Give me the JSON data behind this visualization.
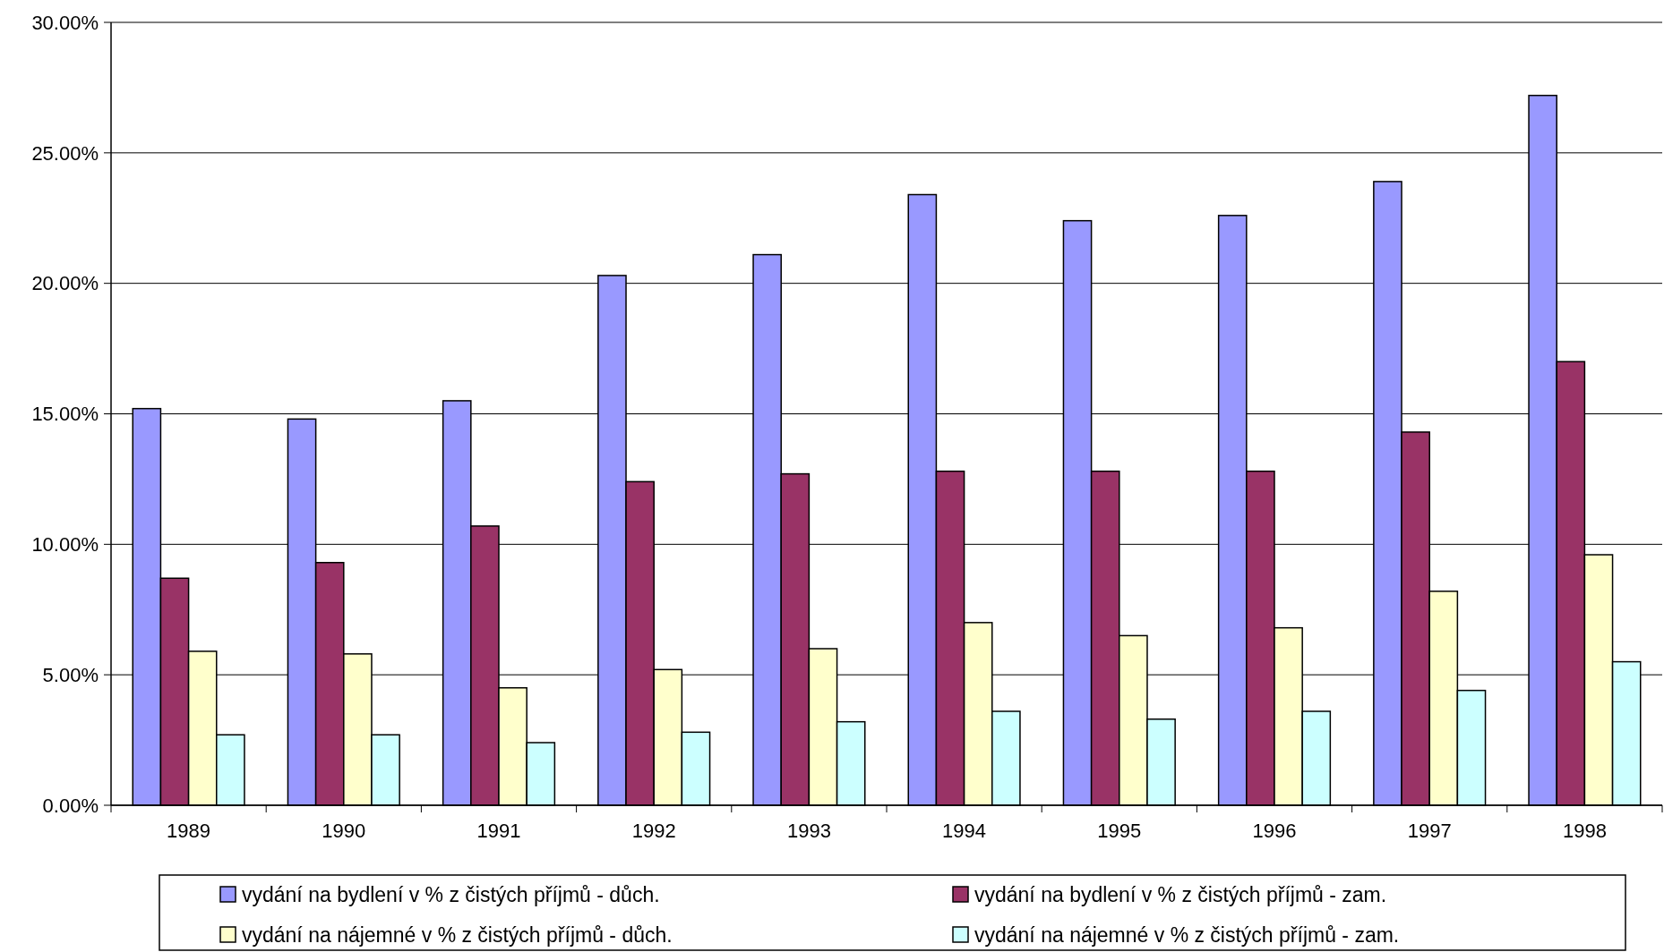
{
  "chart_data": {
    "type": "bar",
    "categories": [
      "1989",
      "1990",
      "1991",
      "1992",
      "1993",
      "1994",
      "1995",
      "1996",
      "1997",
      "1998"
    ],
    "series": [
      {
        "name": "vydání na bydlení v % z čistých příjmů - důch.",
        "color": "#9999ff",
        "values": [
          15.2,
          14.8,
          15.5,
          20.3,
          21.1,
          23.4,
          22.4,
          22.6,
          23.9,
          27.2
        ]
      },
      {
        "name": "vydání na bydlení v % z čistých příjmů - zam.",
        "color": "#993366",
        "values": [
          8.7,
          9.3,
          10.7,
          12.4,
          12.7,
          12.8,
          12.8,
          12.8,
          14.3,
          17.0
        ]
      },
      {
        "name": "vydání na nájemné v % z čistých příjmů - důch.",
        "color": "#ffffcc",
        "values": [
          5.9,
          5.8,
          4.5,
          5.2,
          6.0,
          7.0,
          6.5,
          6.8,
          8.2,
          9.6
        ]
      },
      {
        "name": "vydání na nájemné v % z čistých příjmů - zam.",
        "color": "#ccffff",
        "values": [
          2.7,
          2.7,
          2.4,
          2.8,
          3.2,
          3.6,
          3.3,
          3.6,
          4.4,
          5.5
        ]
      }
    ],
    "ylim": [
      0,
      30
    ],
    "yticks": [
      {
        "value": 0,
        "label": "0.00%"
      },
      {
        "value": 5,
        "label": "5.00%"
      },
      {
        "value": 10,
        "label": "10.00%"
      },
      {
        "value": 15,
        "label": "15.00%"
      },
      {
        "value": 20,
        "label": "20.00%"
      },
      {
        "value": 25,
        "label": "25.00%"
      },
      {
        "value": 30,
        "label": "30.00%"
      }
    ],
    "grid": "y",
    "legend": "bottom"
  }
}
